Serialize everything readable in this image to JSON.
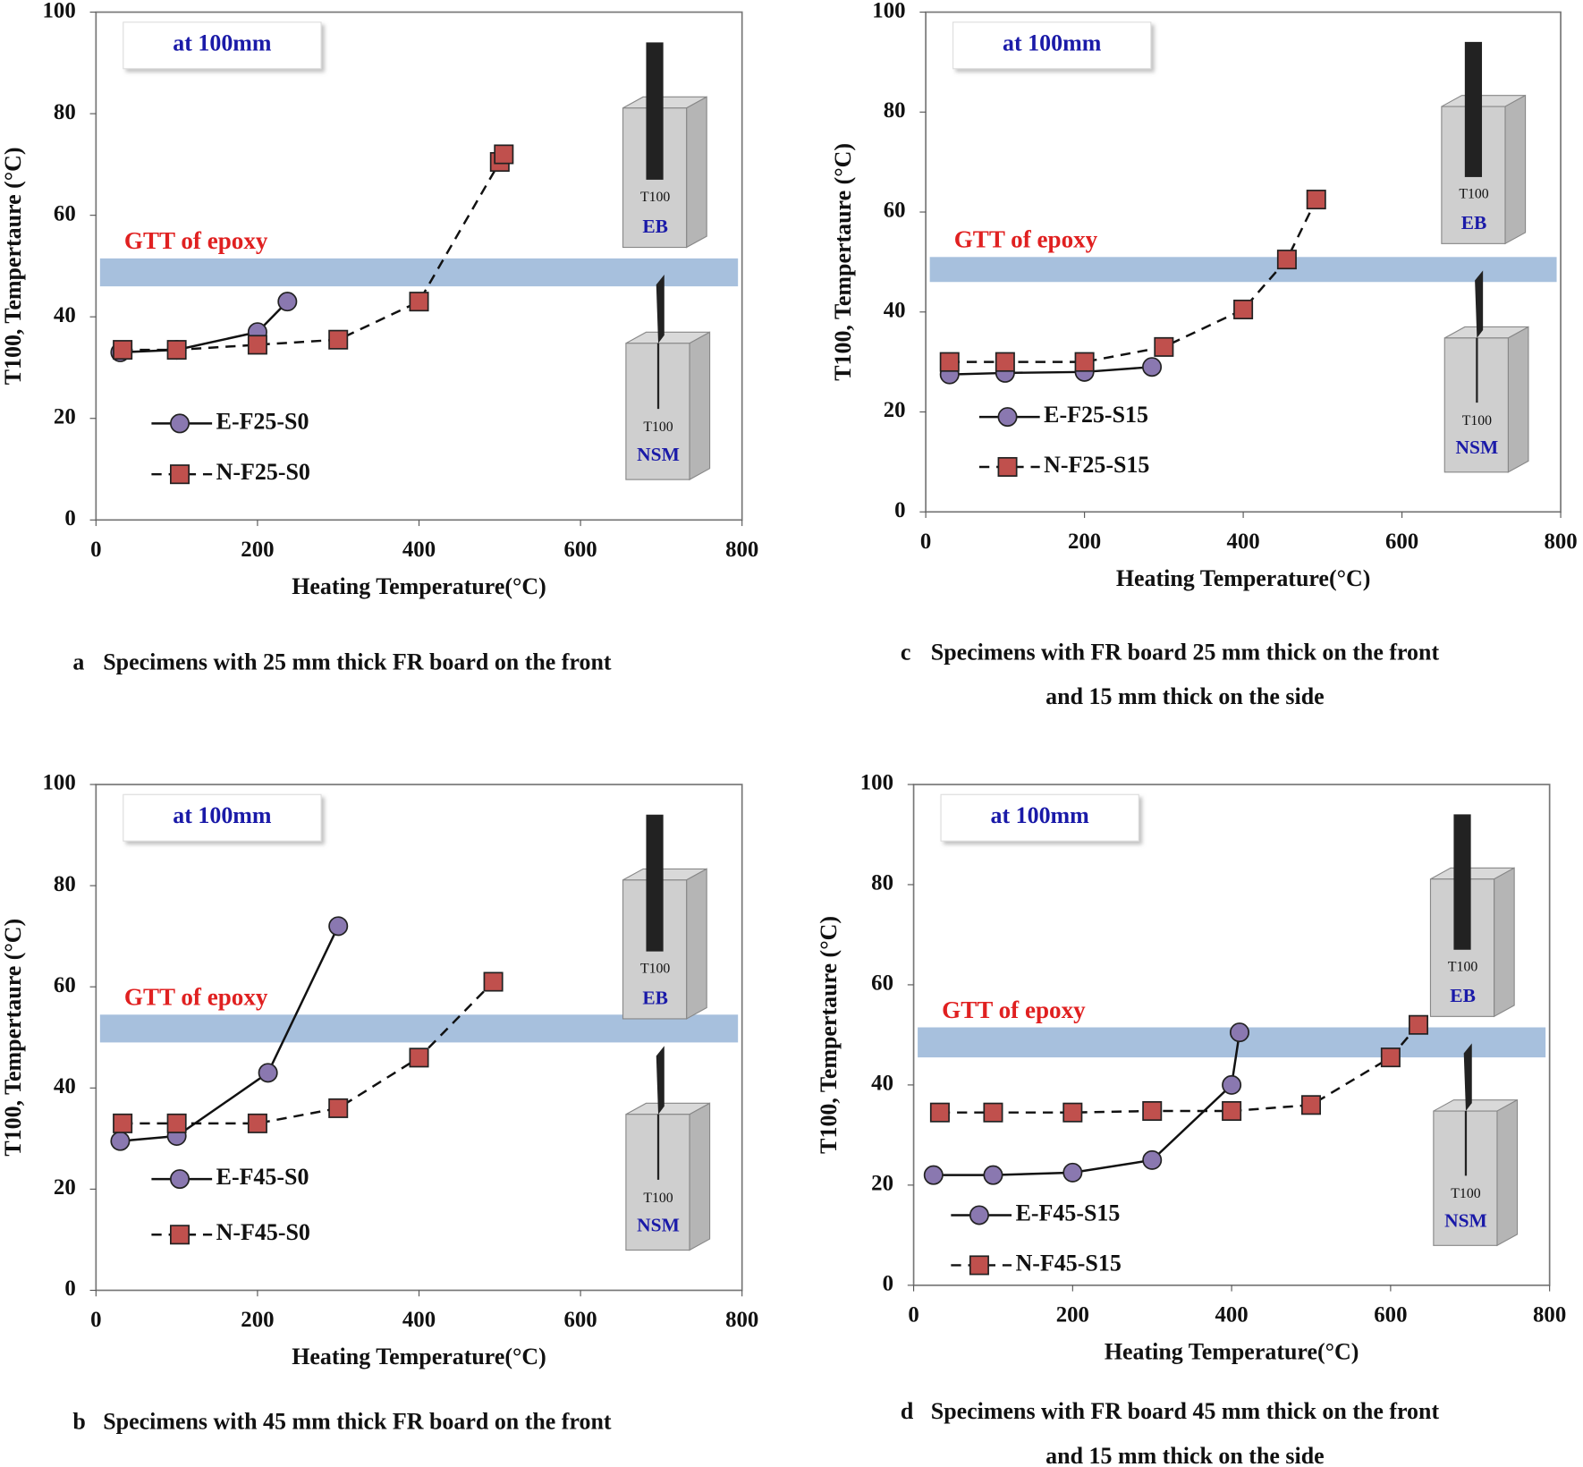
{
  "chart_data": [
    {
      "type": "line",
      "caption_label": "a",
      "caption": [
        "Specimens with 25 mm thick FR board on the front"
      ],
      "xlabel": "Heating Temperature(°C)",
      "ylabel": "T100, Tempertaure (°C)",
      "xlim": [
        0,
        800
      ],
      "xticks": [
        0,
        200,
        400,
        600,
        800
      ],
      "ylim": [
        0,
        100
      ],
      "yticks": [
        0,
        20,
        40,
        60,
        80,
        100
      ],
      "annotations": {
        "box": "at 100mm",
        "band_label": "GTT of epoxy",
        "eb_sensor": "T100",
        "eb_label": "EB",
        "nsm_sensor": "T100",
        "nsm_label": "NSM"
      },
      "band": [
        46,
        51.5
      ],
      "band_color": "#a7c0dd",
      "series": [
        {
          "name": "E-F25-S0",
          "color": "#8a78b0",
          "marker": "circle",
          "dashed": false,
          "x": [
            30,
            100,
            200,
            237
          ],
          "values": [
            33,
            33.5,
            37,
            43
          ]
        },
        {
          "name": "N-F25-S0",
          "color": "#c0504d",
          "marker": "square",
          "dashed": true,
          "x": [
            33,
            100,
            200,
            300,
            400,
            500,
            505
          ],
          "values": [
            33.5,
            33.5,
            34.5,
            35.5,
            43,
            70.5,
            72
          ]
        }
      ]
    },
    {
      "type": "line",
      "caption_label": "b",
      "caption": [
        "Specimens with 45 mm thick FR board on the front"
      ],
      "xlabel": "Heating Temperature(°C)",
      "ylabel": "T100, Tempertaure (°C)",
      "xlim": [
        0,
        800
      ],
      "xticks": [
        0,
        200,
        400,
        600,
        800
      ],
      "ylim": [
        0,
        100
      ],
      "yticks": [
        0,
        20,
        40,
        60,
        80,
        100
      ],
      "annotations": {
        "box": "at 100mm",
        "band_label": "GTT of epoxy",
        "eb_sensor": "T100",
        "eb_label": "EB",
        "nsm_sensor": "T100",
        "nsm_label": "NSM"
      },
      "band": [
        49,
        54.5
      ],
      "band_color": "#a7c0dd",
      "series": [
        {
          "name": "E-F45-S0",
          "color": "#8a78b0",
          "marker": "circle",
          "dashed": false,
          "x": [
            30,
            100,
            213,
            300
          ],
          "values": [
            29.5,
            30.5,
            43,
            72
          ]
        },
        {
          "name": "N-F45-S0",
          "color": "#c0504d",
          "marker": "square",
          "dashed": true,
          "x": [
            33,
            100,
            200,
            300,
            400,
            492
          ],
          "values": [
            33,
            33,
            33,
            36,
            46,
            61
          ]
        }
      ]
    },
    {
      "type": "line",
      "caption_label": "c",
      "caption": [
        "Specimens with FR board 25 mm thick on the front",
        "and 15 mm thick on the side"
      ],
      "xlabel": "Heating Temperature(°C)",
      "ylabel": "T100, Tempertaure (°C)",
      "xlim": [
        0,
        800
      ],
      "xticks": [
        0,
        200,
        400,
        600,
        800
      ],
      "ylim": [
        0,
        100
      ],
      "yticks": [
        0,
        20,
        40,
        60,
        80,
        100
      ],
      "annotations": {
        "box": "at 100mm",
        "band_label": "GTT of epoxy",
        "eb_sensor": "T100",
        "eb_label": "EB",
        "nsm_sensor": "T100",
        "nsm_label": "NSM"
      },
      "band": [
        46,
        51
      ],
      "band_color": "#a7c0dd",
      "series": [
        {
          "name": "E-F25-S15",
          "color": "#8a78b0",
          "marker": "circle",
          "dashed": false,
          "x": [
            30,
            100,
            200,
            285
          ],
          "values": [
            27.5,
            27.8,
            28,
            29
          ]
        },
        {
          "name": "N-F25-S15",
          "color": "#c0504d",
          "marker": "square",
          "dashed": true,
          "x": [
            30,
            100,
            200,
            300,
            400,
            455,
            492
          ],
          "values": [
            30,
            30,
            30,
            33,
            40.5,
            50.5,
            62.5
          ]
        }
      ]
    },
    {
      "type": "line",
      "caption_label": "d",
      "caption": [
        "Specimens with FR board 45 mm thick on the front",
        "and 15 mm thick on the side"
      ],
      "xlabel": "Heating Temperature(°C)",
      "ylabel": "T100, Tempertaure (°C)",
      "xlim": [
        0,
        800
      ],
      "xticks": [
        0,
        200,
        400,
        600,
        800
      ],
      "ylim": [
        0,
        100
      ],
      "yticks": [
        0,
        20,
        40,
        60,
        80,
        100
      ],
      "annotations": {
        "box": "at 100mm",
        "band_label": "GTT of epoxy",
        "eb_sensor": "T100",
        "eb_label": "EB",
        "nsm_sensor": "T100",
        "nsm_label": "NSM"
      },
      "band": [
        45.5,
        51.5
      ],
      "band_color": "#a7c0dd",
      "series": [
        {
          "name": "E-F45-S15",
          "color": "#8a78b0",
          "marker": "circle",
          "dashed": false,
          "x": [
            25,
            100,
            200,
            300,
            400,
            410
          ],
          "values": [
            22,
            22,
            22.5,
            25,
            40,
            50.5
          ]
        },
        {
          "name": "N-F45-S15",
          "color": "#c0504d",
          "marker": "square",
          "dashed": true,
          "x": [
            33,
            100,
            200,
            300,
            400,
            500,
            600,
            635
          ],
          "values": [
            34.5,
            34.5,
            34.5,
            34.8,
            34.8,
            36,
            45.5,
            52
          ]
        }
      ]
    }
  ]
}
